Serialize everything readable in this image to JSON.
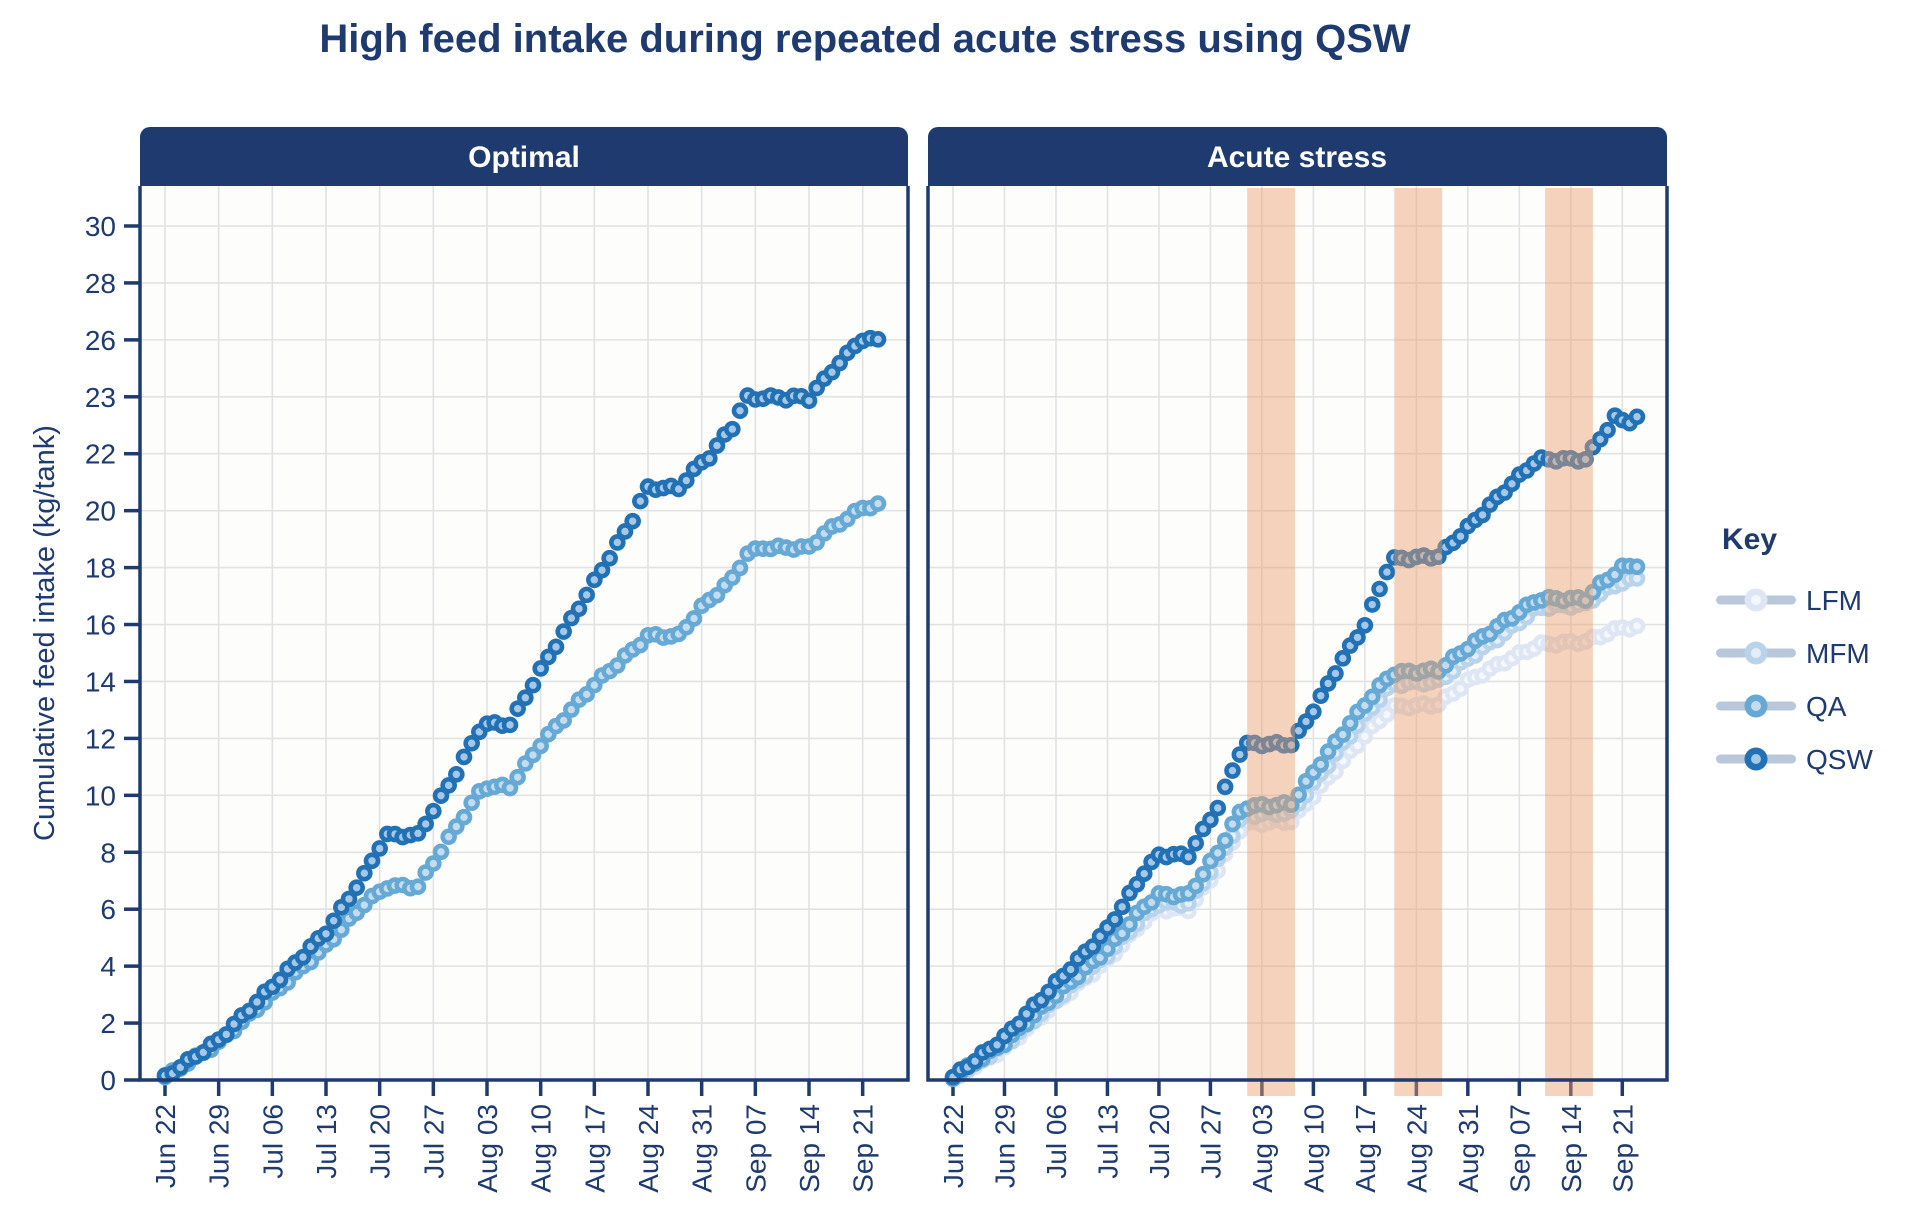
{
  "title": "High feed intake during repeated acute stress using QSW",
  "y_axis": {
    "label": "Cumulative feed intake (kg/tank)",
    "tick_labels": [
      "0",
      "2",
      "4",
      "6",
      "8",
      "10",
      "12",
      "14",
      "16",
      "18",
      "20",
      "22",
      "23",
      "26",
      "28",
      "30"
    ]
  },
  "legend": {
    "title": "Key",
    "entries": [
      {
        "label": "LFM"
      },
      {
        "label": "MFM"
      },
      {
        "label": "QA"
      },
      {
        "label": "QSW"
      }
    ]
  },
  "colors": {
    "navy": "#1e3a6e",
    "grid": "#e2e2e2",
    "plot_bg": "#fdfdfc",
    "stress_band": "rgba(233,158,109,0.45)",
    "legend_line": "#b9c7db",
    "series": {
      "LFM": {
        "ring": "#dfe6f3",
        "center": "#f4f7fb"
      },
      "MFM": {
        "ring": "#b9d4ea",
        "center": "#e3eef7"
      },
      "QA": {
        "ring": "#66a9d4",
        "center": "#c3dcef"
      },
      "QSW": {
        "ring": "#2171b4",
        "center": "#a5c8e8"
      }
    }
  },
  "chart_data": [
    {
      "type": "line",
      "title": "Optimal",
      "ylabel": "Cumulative feed intake (kg/tank)",
      "ylim": [
        0,
        30
      ],
      "y_tick_labels": [
        "0",
        "2",
        "4",
        "6",
        "8",
        "10",
        "12",
        "14",
        "16",
        "18",
        "20",
        "22",
        "23",
        "26",
        "28",
        "30"
      ],
      "x_ticks": [
        "Jun 22",
        "Jun 29",
        "Jul 06",
        "Jul 13",
        "Jul 20",
        "Jul 27",
        "Aug 03",
        "Aug 10",
        "Aug 17",
        "Aug 24",
        "Aug 31",
        "Sep 07",
        "Sep 14",
        "Sep 21"
      ],
      "x_unit": "daily points, day 0 = Jun 22, one tick every 7 days; series defined by waypoints [day, kg] with linear fill between",
      "grid": true,
      "legend_position": "right",
      "series": [
        {
          "name": "QA",
          "waypoints": [
            [
              0,
              0.1
            ],
            [
              7,
              1.3
            ],
            [
              14,
              3.0
            ],
            [
              21,
              4.7
            ],
            [
              26,
              6.2
            ],
            [
              28,
              6.6
            ],
            [
              29,
              6.8
            ],
            [
              33,
              6.8
            ],
            [
              38,
              8.9
            ],
            [
              41,
              10.1
            ],
            [
              42,
              10.3
            ],
            [
              45,
              10.3
            ],
            [
              49,
              11.8
            ],
            [
              56,
              13.9
            ],
            [
              61,
              15.1
            ],
            [
              63,
              15.6
            ],
            [
              67,
              15.6
            ],
            [
              70,
              16.6
            ],
            [
              74,
              17.6
            ],
            [
              76,
              18.5
            ],
            [
              78,
              18.7
            ],
            [
              84,
              18.7
            ],
            [
              86,
              19.2
            ],
            [
              91,
              20.1
            ],
            [
              93,
              20.2
            ]
          ]
        },
        {
          "name": "QSW",
          "waypoints": [
            [
              0,
              0.1
            ],
            [
              7,
              1.4
            ],
            [
              14,
              3.3
            ],
            [
              21,
              5.2
            ],
            [
              26,
              7.2
            ],
            [
              28,
              8.2
            ],
            [
              29,
              8.6
            ],
            [
              33,
              8.6
            ],
            [
              38,
              10.8
            ],
            [
              41,
              12.3
            ],
            [
              42,
              12.5
            ],
            [
              45,
              12.5
            ],
            [
              49,
              14.4
            ],
            [
              56,
              17.5
            ],
            [
              61,
              19.7
            ],
            [
              62,
              20.3
            ],
            [
              63,
              20.8
            ],
            [
              67,
              20.8
            ],
            [
              70,
              21.7
            ],
            [
              74,
              22.5
            ],
            [
              76,
              23.0
            ],
            [
              84,
              23.0
            ],
            [
              86,
              23.9
            ],
            [
              90,
              25.7
            ],
            [
              91,
              26.0
            ],
            [
              93,
              26.0
            ]
          ]
        }
      ]
    },
    {
      "type": "line",
      "title": "Acute stress",
      "ylabel": "Cumulative feed intake (kg/tank)",
      "ylim": [
        0,
        30
      ],
      "y_tick_labels": [
        "0",
        "2",
        "4",
        "6",
        "8",
        "10",
        "12",
        "14",
        "16",
        "18",
        "20",
        "22",
        "23",
        "26",
        "28",
        "30"
      ],
      "x_ticks": [
        "Jun 22",
        "Jun 29",
        "Jul 06",
        "Jul 13",
        "Jul 20",
        "Jul 27",
        "Aug 03",
        "Aug 10",
        "Aug 17",
        "Aug 24",
        "Aug 31",
        "Sep 07",
        "Sep 14",
        "Sep 21"
      ],
      "x_unit": "daily points, day 0 = Jun 22, one tick every 7 days; series defined by waypoints [day, kg] with linear fill between",
      "grid": true,
      "stress_bands_days": [
        [
          40,
          46.5
        ],
        [
          60,
          66.5
        ],
        [
          80.5,
          87
        ]
      ],
      "series": [
        {
          "name": "LFM",
          "waypoints": [
            [
              0,
              0.05
            ],
            [
              7,
              1.1
            ],
            [
              14,
              2.7
            ],
            [
              21,
              4.2
            ],
            [
              26,
              5.6
            ],
            [
              28,
              6.0
            ],
            [
              32,
              6.0
            ],
            [
              36,
              7.4
            ],
            [
              39,
              8.8
            ],
            [
              40,
              9.0
            ],
            [
              46,
              9.1
            ],
            [
              49,
              10.0
            ],
            [
              53,
              11.2
            ],
            [
              56,
              12.1
            ],
            [
              59,
              12.9
            ],
            [
              60,
              13.1
            ],
            [
              66,
              13.2
            ],
            [
              70,
              14.0
            ],
            [
              75,
              14.7
            ],
            [
              79,
              15.2
            ],
            [
              80,
              15.3
            ],
            [
              86,
              15.4
            ],
            [
              88,
              15.6
            ],
            [
              91,
              15.9
            ],
            [
              93,
              15.9
            ]
          ]
        },
        {
          "name": "MFM",
          "waypoints": [
            [
              0,
              0.05
            ],
            [
              7,
              1.2
            ],
            [
              14,
              2.8
            ],
            [
              21,
              4.4
            ],
            [
              26,
              5.8
            ],
            [
              28,
              6.2
            ],
            [
              32,
              6.2
            ],
            [
              36,
              7.7
            ],
            [
              39,
              9.1
            ],
            [
              40,
              9.3
            ],
            [
              46,
              9.4
            ],
            [
              49,
              10.4
            ],
            [
              53,
              11.8
            ],
            [
              56,
              12.8
            ],
            [
              59,
              13.7
            ],
            [
              60,
              13.9
            ],
            [
              66,
              14.0
            ],
            [
              70,
              14.8
            ],
            [
              75,
              15.7
            ],
            [
              79,
              16.5
            ],
            [
              80,
              16.6
            ],
            [
              86,
              16.7
            ],
            [
              88,
              17.1
            ],
            [
              91,
              17.5
            ],
            [
              93,
              17.6
            ]
          ]
        },
        {
          "name": "QA",
          "waypoints": [
            [
              0,
              0.1
            ],
            [
              7,
              1.3
            ],
            [
              14,
              3.0
            ],
            [
              21,
              4.6
            ],
            [
              26,
              6.1
            ],
            [
              28,
              6.5
            ],
            [
              32,
              6.5
            ],
            [
              36,
              8.0
            ],
            [
              39,
              9.4
            ],
            [
              40,
              9.6
            ],
            [
              46,
              9.7
            ],
            [
              49,
              10.8
            ],
            [
              53,
              12.2
            ],
            [
              56,
              13.2
            ],
            [
              59,
              14.1
            ],
            [
              60,
              14.3
            ],
            [
              66,
              14.4
            ],
            [
              70,
              15.2
            ],
            [
              75,
              16.1
            ],
            [
              79,
              16.8
            ],
            [
              80,
              16.9
            ],
            [
              86,
              16.9
            ],
            [
              88,
              17.4
            ],
            [
              91,
              18.0
            ],
            [
              93,
              18.1
            ]
          ]
        },
        {
          "name": "QSW",
          "waypoints": [
            [
              0,
              0.1
            ],
            [
              7,
              1.5
            ],
            [
              14,
              3.4
            ],
            [
              21,
              5.3
            ],
            [
              26,
              7.3
            ],
            [
              28,
              7.9
            ],
            [
              32,
              7.9
            ],
            [
              36,
              9.6
            ],
            [
              39,
              11.5
            ],
            [
              40,
              11.8
            ],
            [
              46,
              11.8
            ],
            [
              49,
              13.0
            ],
            [
              53,
              14.8
            ],
            [
              56,
              16.0
            ],
            [
              59,
              17.9
            ],
            [
              60,
              18.3
            ],
            [
              66,
              18.4
            ],
            [
              70,
              19.4
            ],
            [
              75,
              20.7
            ],
            [
              79,
              21.7
            ],
            [
              80,
              21.8
            ],
            [
              86,
              21.8
            ],
            [
              88,
              22.3
            ],
            [
              90,
              22.6
            ],
            [
              93,
              22.6
            ]
          ]
        }
      ]
    }
  ]
}
